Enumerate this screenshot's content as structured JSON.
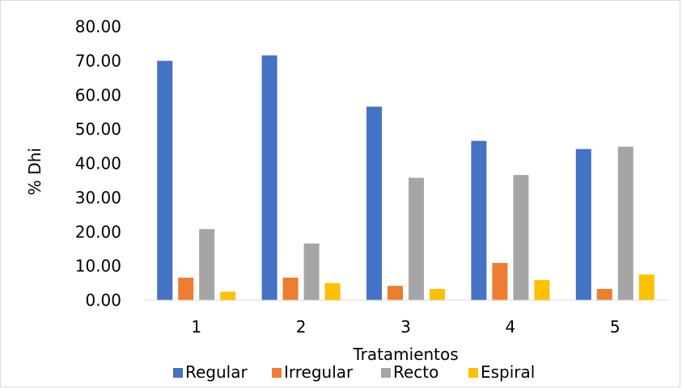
{
  "chart_data": {
    "type": "bar",
    "categories": [
      "1",
      "2",
      "3",
      "4",
      "5"
    ],
    "series": [
      {
        "name": "Regular",
        "color": "#4472C4",
        "values": [
          70.0,
          71.6,
          56.6,
          46.6,
          44.2
        ]
      },
      {
        "name": "Irregular",
        "color": "#ED7D31",
        "values": [
          6.6,
          6.6,
          4.2,
          10.9,
          3.3
        ]
      },
      {
        "name": "Recto",
        "color": "#A5A5A5",
        "values": [
          20.8,
          16.6,
          35.8,
          36.6,
          44.9
        ]
      },
      {
        "name": "Espiral",
        "color": "#FFC000",
        "values": [
          2.5,
          5.0,
          3.3,
          5.9,
          7.5
        ]
      }
    ],
    "xlabel": "Tratamientos",
    "ylabel": "% Dhi",
    "ylim": [
      0,
      80
    ],
    "yticks": [
      "0.00",
      "10.00",
      "20.00",
      "30.00",
      "40.00",
      "50.00",
      "60.00",
      "70.00",
      "80.00"
    ],
    "grid": false,
    "legend_position": "bottom"
  }
}
